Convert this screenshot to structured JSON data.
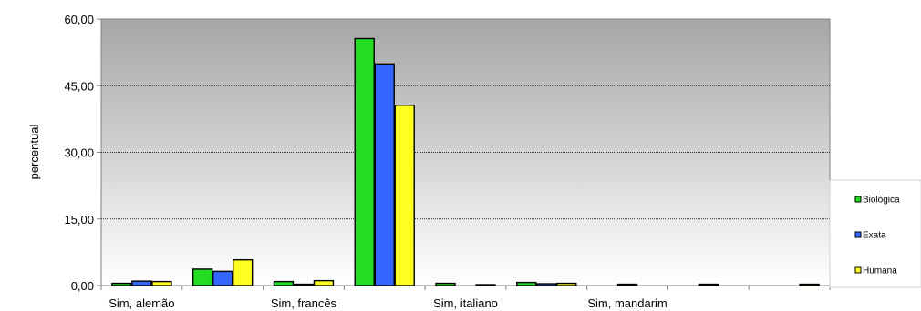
{
  "chart_data": {
    "type": "bar",
    "ylabel": "percentual",
    "ylim": [
      0,
      60
    ],
    "yticks": [
      "0,00",
      "15,00",
      "30,00",
      "45,00",
      "60,00"
    ],
    "ytick_values": [
      0,
      15,
      30,
      45,
      60
    ],
    "grid": true,
    "legend_placement": "right",
    "categories": [
      "Sim, alemão",
      "",
      "Sim, francês",
      "",
      "Sim, italiano",
      "",
      "Sim, mandarim",
      "",
      ""
    ],
    "series": [
      {
        "name": "Biológica",
        "color": "#22dd22",
        "values": [
          0.5,
          3.7,
          0.9,
          55.6,
          0.5,
          0.7,
          0.0,
          0.0,
          0.0
        ]
      },
      {
        "name": "Exata",
        "color": "#3366ff",
        "values": [
          1.0,
          3.2,
          0.3,
          49.9,
          0.0,
          0.4,
          0.3,
          0.3,
          0.0
        ]
      },
      {
        "name": "Humana",
        "color": "#ffff22",
        "values": [
          0.9,
          5.8,
          1.1,
          40.6,
          0.2,
          0.5,
          0.0,
          0.0,
          0.3
        ]
      }
    ]
  }
}
